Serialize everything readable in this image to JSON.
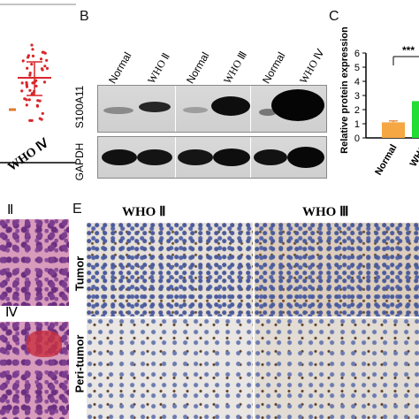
{
  "panel_a": {
    "x_label": "WHO Ⅳ"
  },
  "panel_b": {
    "letter": "B",
    "lanes": [
      "Normal",
      "WHO Ⅱ",
      "Normal",
      "WHO Ⅲ",
      "Normal",
      "WHO Ⅳ"
    ],
    "rows": [
      "S100A11",
      "GAPDH"
    ]
  },
  "panel_c": {
    "letter": "C",
    "significance": "***",
    "colors": {
      "normal": "#f4a742",
      "who": "#22dd33"
    }
  },
  "panel_d": {
    "labels": [
      "Ⅱ",
      "Ⅳ"
    ]
  },
  "panel_e": {
    "letter": "E",
    "columns": [
      "WHO Ⅱ",
      "WHO Ⅲ"
    ],
    "rows": [
      "Tumor",
      "Peri-tumor"
    ]
  },
  "chart_data": {
    "type": "bar",
    "categories": [
      "Normal",
      "WHO"
    ],
    "values": [
      1.1,
      2.6
    ],
    "errors": [
      0.1,
      0.0
    ],
    "title": "",
    "xlabel": "",
    "ylabel": "Relative protein expression",
    "ylim": [
      0,
      6
    ],
    "yticks": [
      "0",
      "1",
      "2",
      "3",
      "4",
      "5",
      "6"
    ],
    "xtick_labels": [
      "Normal",
      "WHO"
    ]
  }
}
